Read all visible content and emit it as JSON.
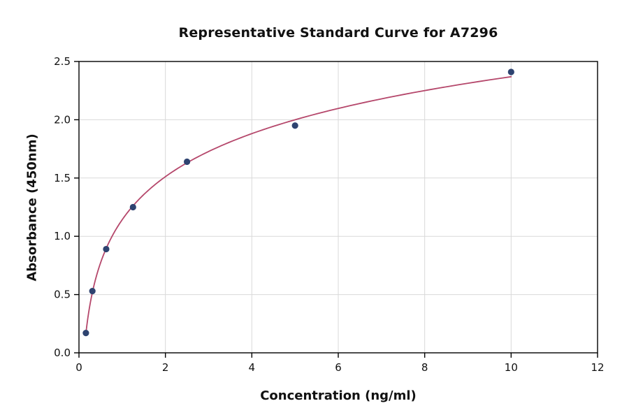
{
  "chart_data": {
    "type": "scatter",
    "title": "Representative Standard Curve for A7296",
    "xlabel": "Concentration (ng/ml)",
    "ylabel": "Absorbance (450nm)",
    "x": [
      0.16,
      0.31,
      0.63,
      1.25,
      2.5,
      5,
      10
    ],
    "y": [
      0.17,
      0.53,
      0.89,
      1.25,
      1.64,
      1.95,
      2.41
    ],
    "xlim": [
      0,
      12
    ],
    "ylim": [
      0,
      2.5
    ],
    "xticks": [
      0,
      2,
      4,
      6,
      8,
      10,
      12
    ],
    "xtick_labels": [
      "0",
      "2",
      "4",
      "6",
      "8",
      "10",
      "12"
    ],
    "yticks": [
      0,
      0.5,
      1,
      1.5,
      2,
      2.5
    ],
    "ytick_labels": [
      "0.0",
      "0.5",
      "1.0",
      "1.5",
      "2.0",
      "2.5"
    ],
    "grid": true,
    "fit": "logarithmic",
    "legend": "none",
    "point_color": "#2e4370",
    "line_color": "#b5476b",
    "grid_color": "#d9d9d9",
    "axis_color": "#000000",
    "background": "#ffffff"
  }
}
